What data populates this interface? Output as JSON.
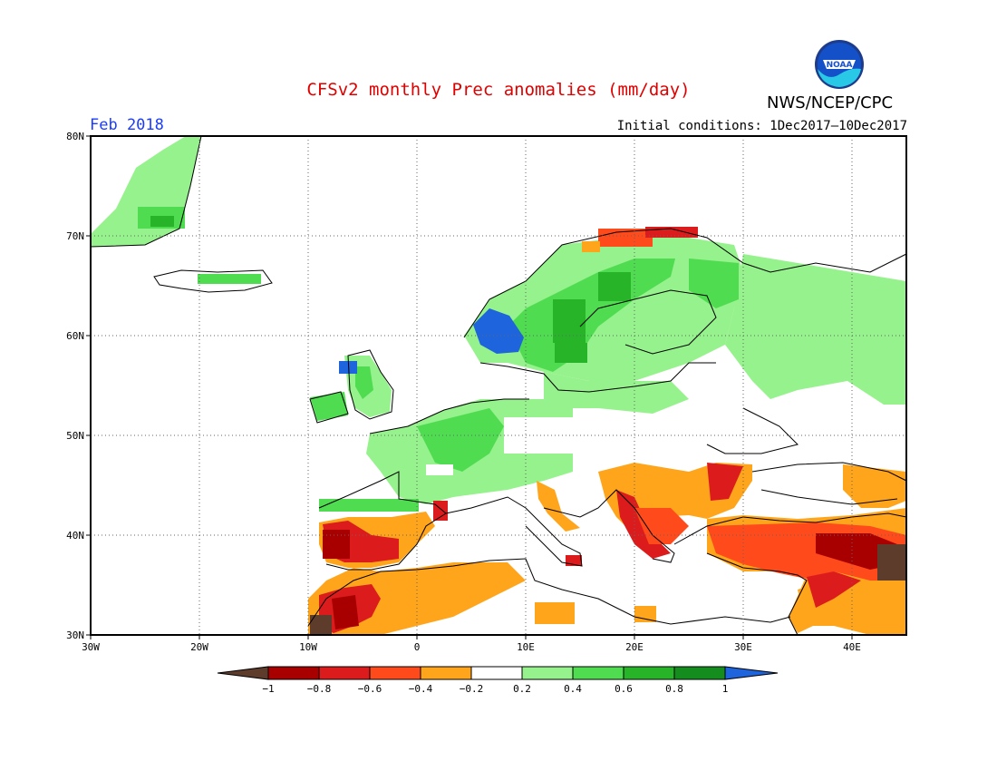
{
  "header": {
    "title": "CFSv2 monthly Prec anomalies (mm/day)",
    "period": "Feb 2018",
    "initial_conditions": "Initial conditions: 1Dec2017–10Dec2017",
    "agency": "NWS/NCEP/CPC",
    "logo_text": "NOAA"
  },
  "map": {
    "lon_range": [
      -30,
      45
    ],
    "lat_range": [
      30,
      80
    ],
    "lat_labels": [
      "30N",
      "40N",
      "50N",
      "60N",
      "70N",
      "80N"
    ],
    "lon_labels": [
      "30W",
      "20W",
      "10W",
      "0",
      "10E",
      "20E",
      "30E",
      "40E"
    ],
    "grid": "dotted"
  },
  "legend": {
    "labels": [
      "−1",
      "−0.8",
      "−0.6",
      "−0.4",
      "−0.2",
      "0.2",
      "0.4",
      "0.6",
      "0.8",
      "1"
    ],
    "colors": [
      "#5e3c2c",
      "#a80000",
      "#dc1c1c",
      "#ff4a1c",
      "#ffa51c",
      "#ffffff",
      "#96f28c",
      "#50dc50",
      "#28b428",
      "#148c1e",
      "#1e64dc"
    ]
  }
}
